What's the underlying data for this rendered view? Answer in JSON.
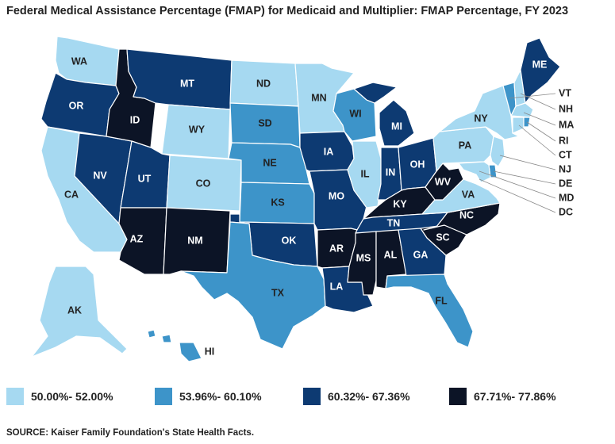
{
  "title": "Federal Medical Assistance Percentage (FMAP) for Medicaid and Multiplier: FMAP Percentage, FY 2023",
  "source": "SOURCE: Kaiser Family Foundation's State Health Facts.",
  "colors": {
    "c1": "#a6d9f1",
    "c2": "#3d94c9",
    "c3": "#0d3a72",
    "c4": "#0c1426",
    "label_dark": "#222222",
    "label_light": "#ffffff"
  },
  "legend": [
    {
      "label": "50.00%- 52.00%",
      "class": "c1"
    },
    {
      "label": "53.96%- 60.10%",
      "class": "c2"
    },
    {
      "label": "60.32%- 67.36%",
      "class": "c3"
    },
    {
      "label": "67.71%- 77.86%",
      "class": "c4"
    }
  ],
  "states": {
    "WA": {
      "label": "WA",
      "class": "c1"
    },
    "OR": {
      "label": "OR",
      "class": "c3"
    },
    "CA": {
      "label": "CA",
      "class": "c1"
    },
    "NV": {
      "label": "NV",
      "class": "c3"
    },
    "ID": {
      "label": "ID",
      "class": "c4"
    },
    "MT": {
      "label": "MT",
      "class": "c3"
    },
    "WY": {
      "label": "WY",
      "class": "c1"
    },
    "UT": {
      "label": "UT",
      "class": "c3"
    },
    "AZ": {
      "label": "AZ",
      "class": "c4"
    },
    "CO": {
      "label": "CO",
      "class": "c1"
    },
    "NM": {
      "label": "NM",
      "class": "c4"
    },
    "ND": {
      "label": "ND",
      "class": "c1"
    },
    "SD": {
      "label": "SD",
      "class": "c2"
    },
    "NE": {
      "label": "NE",
      "class": "c2"
    },
    "KS": {
      "label": "KS",
      "class": "c2"
    },
    "OK": {
      "label": "OK",
      "class": "c3"
    },
    "TX": {
      "label": "TX",
      "class": "c2"
    },
    "MN": {
      "label": "MN",
      "class": "c1"
    },
    "IA": {
      "label": "IA",
      "class": "c3"
    },
    "MO": {
      "label": "MO",
      "class": "c3"
    },
    "AR": {
      "label": "AR",
      "class": "c4"
    },
    "LA": {
      "label": "LA",
      "class": "c3"
    },
    "WI": {
      "label": "WI",
      "class": "c2"
    },
    "IL": {
      "label": "IL",
      "class": "c1"
    },
    "MI": {
      "label": "MI",
      "class": "c3"
    },
    "IN": {
      "label": "IN",
      "class": "c3"
    },
    "OH": {
      "label": "OH",
      "class": "c3"
    },
    "KY": {
      "label": "KY",
      "class": "c4"
    },
    "TN": {
      "label": "TN",
      "class": "c3"
    },
    "MS": {
      "label": "MS",
      "class": "c4"
    },
    "AL": {
      "label": "AL",
      "class": "c4"
    },
    "GA": {
      "label": "GA",
      "class": "c3"
    },
    "FL": {
      "label": "FL",
      "class": "c2"
    },
    "SC": {
      "label": "SC",
      "class": "c4"
    },
    "NC": {
      "label": "NC",
      "class": "c4"
    },
    "VA": {
      "label": "VA",
      "class": "c1"
    },
    "WV": {
      "label": "WV",
      "class": "c4"
    },
    "PA": {
      "label": "PA",
      "class": "c1"
    },
    "NY": {
      "label": "NY",
      "class": "c1"
    },
    "VT": {
      "label": "VT",
      "class": "c2"
    },
    "NH": {
      "label": "NH",
      "class": "c1"
    },
    "ME": {
      "label": "ME",
      "class": "c3"
    },
    "MA": {
      "label": "MA",
      "class": "c1"
    },
    "RI": {
      "label": "RI",
      "class": "c2"
    },
    "CT": {
      "label": "CT",
      "class": "c1"
    },
    "NJ": {
      "label": "NJ",
      "class": "c1"
    },
    "DE": {
      "label": "DE",
      "class": "c2"
    },
    "MD": {
      "label": "MD",
      "class": "c1"
    },
    "DC": {
      "label": "DC",
      "class": "c4"
    },
    "AK": {
      "label": "AK",
      "class": "c1"
    },
    "HI": {
      "label": "HI",
      "class": "c2"
    }
  }
}
